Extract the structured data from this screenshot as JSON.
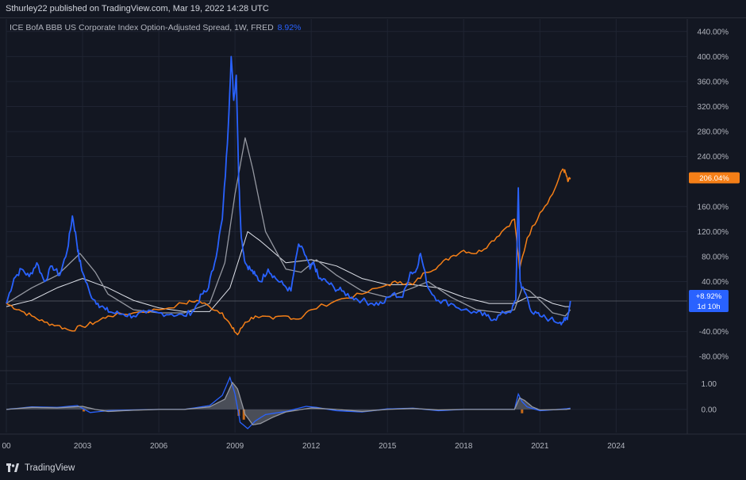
{
  "header": {
    "publish_text": "Sthurley22 published on TradingView.com, Mar 19, 2022 14:28 UTC"
  },
  "legend": {
    "title": "ICE BofA BBB US Corporate Index Option-Adjusted Spread, 1W, FRED",
    "value": "8.92%"
  },
  "badges": {
    "orange_value": "206.04%",
    "blue_value": "+8.92%",
    "blue_time": "1d 10h"
  },
  "footer": {
    "brand": "TradingView"
  },
  "colors": {
    "background": "#131722",
    "grid": "#1f2432",
    "blue_series": "#2962ff",
    "orange_series": "#f57f17",
    "gray_ma": "#9598a1",
    "white_ma": "#e0e3eb",
    "orange_badge": "#f57f17",
    "blue_badge": "#2962ff"
  },
  "chart_data": [
    {
      "type": "line",
      "y_axis_unit": "%",
      "yticks": [
        "440.00%",
        "400.00%",
        "360.00%",
        "320.00%",
        "280.00%",
        "240.00%",
        "160.00%",
        "120.00%",
        "80.00%",
        "40.00%",
        "-40.00%",
        "-80.00%"
      ],
      "ylim": [
        -100,
        460
      ],
      "xticks": [
        "00",
        "2003",
        "2006",
        "2009",
        "2012",
        "2015",
        "2018",
        "2021",
        "2024"
      ],
      "xlim": [
        2000,
        2026.8
      ],
      "series": [
        {
          "color": "blue",
          "x": [
            2000.0,
            2000.3,
            2000.6,
            2000.9,
            2001.2,
            2001.5,
            2001.8,
            2002.1,
            2002.4,
            2002.6,
            2002.75,
            2002.85,
            2003.0,
            2003.3,
            2003.6,
            2003.9,
            2004.2,
            2004.6,
            2005.0,
            2005.5,
            2006.0,
            2006.5,
            2007.0,
            2007.4,
            2007.7,
            2007.9,
            2008.2,
            2008.5,
            2008.7,
            2008.85,
            2008.95,
            2009.05,
            2009.15,
            2009.25,
            2009.4,
            2009.6,
            2009.8,
            2010.0,
            2010.3,
            2010.6,
            2010.9,
            2011.2,
            2011.5,
            2011.8,
            2011.95,
            2012.1,
            2012.3,
            2012.6,
            2012.9,
            2013.2,
            2013.6,
            2014.0,
            2014.4,
            2014.8,
            2015.2,
            2015.6,
            2015.9,
            2016.1,
            2016.3,
            2016.6,
            2017.0,
            2017.5,
            2018.0,
            2018.5,
            2018.9,
            2019.2,
            2019.6,
            2019.9,
            2020.05,
            2020.15,
            2020.22,
            2020.3,
            2020.45,
            2020.7,
            2021.0,
            2021.4,
            2021.8,
            2022.0,
            2022.1,
            2022.2
          ],
          "y": [
            5,
            45,
            60,
            48,
            70,
            40,
            65,
            50,
            90,
            145,
            110,
            80,
            55,
            20,
            5,
            -5,
            -10,
            -12,
            -15,
            -10,
            -10,
            -12,
            -15,
            -5,
            20,
            25,
            70,
            140,
            260,
            400,
            330,
            370,
            200,
            110,
            70,
            60,
            50,
            40,
            60,
            45,
            35,
            25,
            100,
            80,
            60,
            70,
            45,
            40,
            30,
            25,
            15,
            10,
            5,
            5,
            20,
            15,
            55,
            55,
            85,
            30,
            10,
            5,
            -5,
            -10,
            -15,
            -20,
            -10,
            -5,
            10,
            190,
            40,
            30,
            20,
            -10,
            -15,
            -20,
            -25,
            -22,
            -15,
            9
          ]
        },
        {
          "color": "orange",
          "x": [
            2000.0,
            2000.5,
            2001.0,
            2001.5,
            2002.0,
            2002.5,
            2003.0,
            2003.5,
            2004.0,
            2005.0,
            2006.0,
            2007.0,
            2007.5,
            2008.0,
            2008.5,
            2008.9,
            2009.1,
            2009.4,
            2009.8,
            2010.5,
            2011.0,
            2011.5,
            2012.0,
            2013.0,
            2014.0,
            2015.0,
            2015.5,
            2016.0,
            2016.5,
            2017.0,
            2017.5,
            2018.0,
            2018.5,
            2019.0,
            2019.5,
            2020.0,
            2020.2,
            2020.5,
            2021.0,
            2021.5,
            2021.9,
            2022.0,
            2022.1,
            2022.2
          ],
          "y": [
            5,
            -5,
            -15,
            -25,
            -30,
            -38,
            -32,
            -25,
            -15,
            -10,
            -5,
            5,
            10,
            0,
            -10,
            -35,
            -45,
            -25,
            -15,
            -20,
            -15,
            -20,
            -5,
            10,
            20,
            35,
            40,
            35,
            55,
            65,
            80,
            90,
            85,
            100,
            120,
            140,
            60,
            110,
            150,
            180,
            220,
            215,
            200,
            206
          ]
        },
        {
          "color": "gray",
          "x": [
            2000.0,
            2001.0,
            2002.0,
            2002.9,
            2003.5,
            2004.0,
            2005.0,
            2006.0,
            2007.0,
            2008.0,
            2008.6,
            2009.0,
            2009.4,
            2009.7,
            2010.2,
            2011.0,
            2011.6,
            2012.2,
            2013.0,
            2014.0,
            2015.0,
            2016.0,
            2016.6,
            2017.5,
            2018.5,
            2019.5,
            2020.0,
            2020.3,
            2020.6,
            2021.0,
            2021.5,
            2022.0,
            2022.2
          ],
          "y": [
            5,
            30,
            50,
            85,
            55,
            20,
            -5,
            -10,
            -10,
            5,
            70,
            180,
            270,
            220,
            120,
            60,
            55,
            75,
            50,
            25,
            15,
            30,
            40,
            15,
            -5,
            -10,
            -5,
            30,
            25,
            10,
            -10,
            -15,
            -5
          ]
        },
        {
          "color": "white",
          "x": [
            2000.0,
            2001.0,
            2002.0,
            2003.0,
            2004.0,
            2005.0,
            2006.0,
            2007.0,
            2008.0,
            2008.8,
            2009.5,
            2010.0,
            2011.0,
            2012.0,
            2013.0,
            2014.0,
            2015.0,
            2016.0,
            2017.0,
            2018.0,
            2019.0,
            2020.0,
            2020.5,
            2021.0,
            2021.5,
            2022.0,
            2022.2
          ],
          "y": [
            0,
            10,
            30,
            45,
            30,
            10,
            -2,
            -8,
            -8,
            30,
            120,
            105,
            70,
            75,
            65,
            45,
            35,
            35,
            30,
            15,
            5,
            5,
            15,
            15,
            5,
            0,
            0
          ]
        }
      ]
    },
    {
      "type": "area",
      "yticks": [
        "1.00",
        "0.00"
      ],
      "ylim": [
        -0.9,
        1.45
      ],
      "series": [
        {
          "color": "blue",
          "x": [
            2000.0,
            2001.0,
            2002.0,
            2002.8,
            2003.3,
            2004.0,
            2005.0,
            2006.0,
            2007.0,
            2008.0,
            2008.5,
            2008.8,
            2009.0,
            2009.2,
            2009.5,
            2009.8,
            2010.2,
            2011.0,
            2011.8,
            2012.2,
            2013.0,
            2014.0,
            2015.0,
            2016.0,
            2017.0,
            2018.0,
            2019.0,
            2020.0,
            2020.15,
            2020.3,
            2020.5,
            2021.0,
            2022.0,
            2022.2
          ],
          "y": [
            0.0,
            0.1,
            0.08,
            0.15,
            -0.12,
            -0.05,
            -0.02,
            0.0,
            0.0,
            0.15,
            0.55,
            1.25,
            0.6,
            -0.5,
            -0.75,
            -0.45,
            -0.2,
            -0.08,
            0.12,
            0.08,
            -0.05,
            -0.1,
            0.02,
            0.05,
            -0.05,
            0.0,
            0.0,
            0.0,
            0.6,
            0.3,
            0.1,
            -0.05,
            0.02,
            0.05
          ]
        },
        {
          "color": "gray",
          "x": [
            2000.0,
            2001.0,
            2002.0,
            2003.0,
            2003.5,
            2004.0,
            2005.0,
            2006.0,
            2007.0,
            2008.0,
            2008.6,
            2008.9,
            2009.1,
            2009.4,
            2009.7,
            2010.0,
            2010.5,
            2011.0,
            2012.0,
            2013.0,
            2014.0,
            2015.0,
            2016.0,
            2017.0,
            2018.0,
            2019.0,
            2020.0,
            2020.2,
            2020.4,
            2020.7,
            2021.0,
            2022.0,
            2022.2
          ],
          "y": [
            0.0,
            0.08,
            0.06,
            0.12,
            0.0,
            -0.08,
            -0.03,
            0.0,
            0.0,
            0.1,
            0.4,
            1.05,
            0.8,
            -0.2,
            -0.6,
            -0.55,
            -0.3,
            -0.1,
            0.06,
            0.0,
            -0.08,
            0.0,
            0.04,
            -0.02,
            0.0,
            0.0,
            0.0,
            0.45,
            0.35,
            0.1,
            -0.02,
            0.0,
            0.02
          ]
        }
      ]
    }
  ]
}
